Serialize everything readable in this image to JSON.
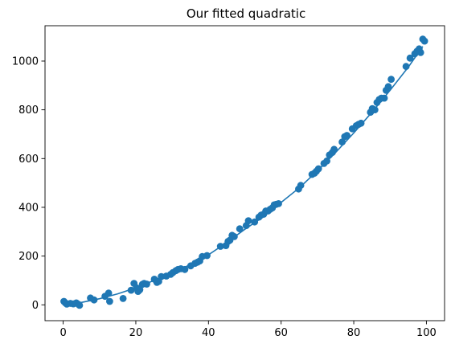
{
  "chart_data": {
    "type": "scatter",
    "title": "Our fitted quadratic",
    "xlabel": "",
    "ylabel": "",
    "xlim": [
      -5,
      105
    ],
    "ylim": [
      -65,
      1145
    ],
    "xticks": [
      0,
      20,
      40,
      60,
      80,
      100
    ],
    "yticks": [
      0,
      200,
      400,
      600,
      800,
      1000
    ],
    "grid": false,
    "legend": "none",
    "color": "#1f77b4",
    "series": [
      {
        "kind": "scatter",
        "points": [
          [
            0.2,
            14
          ],
          [
            0.6,
            8
          ],
          [
            1.0,
            3
          ],
          [
            2.0,
            6
          ],
          [
            2.8,
            4
          ],
          [
            3.6,
            8
          ],
          [
            4.2,
            2
          ],
          [
            4.5,
            -2
          ],
          [
            7.5,
            28
          ],
          [
            8.5,
            20
          ],
          [
            11.5,
            35
          ],
          [
            12.5,
            48
          ],
          [
            12.8,
            14
          ],
          [
            16.5,
            26
          ],
          [
            18.7,
            60
          ],
          [
            19.5,
            88
          ],
          [
            20.2,
            70
          ],
          [
            20.6,
            55
          ],
          [
            21.1,
            62
          ],
          [
            21.8,
            84
          ],
          [
            22.3,
            88
          ],
          [
            23.0,
            85
          ],
          [
            25.1,
            105
          ],
          [
            25.8,
            92
          ],
          [
            26.3,
            96
          ],
          [
            27.0,
            116
          ],
          [
            28.4,
            118
          ],
          [
            29.6,
            125
          ],
          [
            30.2,
            132
          ],
          [
            31.0,
            140
          ],
          [
            31.6,
            145
          ],
          [
            32.4,
            148
          ],
          [
            33.5,
            145
          ],
          [
            35.1,
            160
          ],
          [
            36.3,
            170
          ],
          [
            37.0,
            175
          ],
          [
            37.6,
            180
          ],
          [
            38.3,
            198
          ],
          [
            39.6,
            202
          ],
          [
            43.3,
            240
          ],
          [
            44.8,
            243
          ],
          [
            45.4,
            260
          ],
          [
            45.9,
            265
          ],
          [
            46.5,
            285
          ],
          [
            47.1,
            280
          ],
          [
            48.6,
            312
          ],
          [
            50.4,
            325
          ],
          [
            51.0,
            345
          ],
          [
            52.7,
            340
          ],
          [
            53.9,
            360
          ],
          [
            54.5,
            368
          ],
          [
            55.2,
            372
          ],
          [
            55.8,
            385
          ],
          [
            56.4,
            385
          ],
          [
            57.0,
            392
          ],
          [
            57.6,
            398
          ],
          [
            58.1,
            410
          ],
          [
            58.6,
            412
          ],
          [
            59.3,
            415
          ],
          [
            64.8,
            475
          ],
          [
            65.4,
            490
          ],
          [
            68.5,
            535
          ],
          [
            69.2,
            540
          ],
          [
            69.7,
            548
          ],
          [
            70.3,
            558
          ],
          [
            71.8,
            580
          ],
          [
            72.6,
            590
          ],
          [
            73.3,
            615
          ],
          [
            74.1,
            625
          ],
          [
            74.6,
            638
          ],
          [
            76.8,
            668
          ],
          [
            77.5,
            690
          ],
          [
            78.1,
            695
          ],
          [
            79.6,
            722
          ],
          [
            80.7,
            735
          ],
          [
            81.3,
            740
          ],
          [
            82.0,
            745
          ],
          [
            84.6,
            790
          ],
          [
            85.1,
            805
          ],
          [
            85.8,
            800
          ],
          [
            86.4,
            830
          ],
          [
            87.0,
            842
          ],
          [
            87.6,
            848
          ],
          [
            88.4,
            848
          ],
          [
            88.9,
            880
          ],
          [
            89.5,
            895
          ],
          [
            90.3,
            925
          ],
          [
            94.4,
            978
          ],
          [
            95.5,
            1012
          ],
          [
            96.8,
            1030
          ],
          [
            97.4,
            1040
          ],
          [
            98.0,
            1050
          ],
          [
            98.4,
            1035
          ],
          [
            99.0,
            1090
          ],
          [
            99.5,
            1082
          ]
        ]
      },
      {
        "kind": "line",
        "x": [
          0,
          5,
          10,
          15,
          20,
          25,
          30,
          35,
          40,
          45,
          50,
          55,
          60,
          65,
          70,
          75,
          80,
          85,
          90,
          95,
          99
        ],
        "y": [
          1,
          10,
          25,
          45,
          70,
          100,
          130,
          165,
          205,
          255,
          310,
          360,
          420,
          480,
          550,
          625,
          705,
          790,
          880,
          975,
          1060
        ]
      }
    ]
  }
}
